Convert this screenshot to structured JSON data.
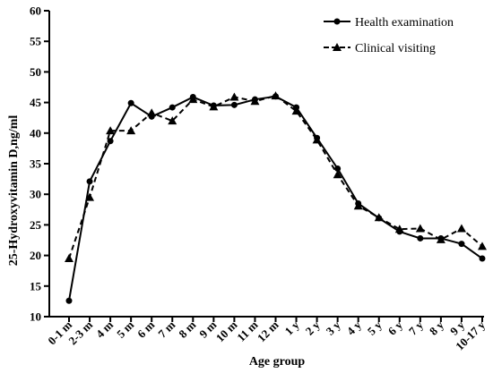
{
  "chart_data": {
    "type": "line",
    "xlabel": "Age group",
    "ylabel": "25-Hydroxyvitamin D,ng/ml",
    "ylim": [
      10,
      60
    ],
    "yticks": [
      10,
      15,
      20,
      25,
      30,
      35,
      40,
      45,
      50,
      55,
      60
    ],
    "grid": false,
    "legend_position": "top-right",
    "categories": [
      "0-1 m",
      "2-3 m",
      "4 m",
      "5 m",
      "6 m",
      "7 m",
      "8 m",
      "9 m",
      "10 m",
      "11 m",
      "12 m",
      "1 y",
      "2 y",
      "3 y",
      "4 y",
      "5 y",
      "6 y",
      "7 y",
      "8 y",
      "9 y",
      "10-17 y"
    ],
    "series": [
      {
        "name": "Health examination",
        "marker": "circle",
        "line_style": "solid",
        "values": [
          12.6,
          32.1,
          38.7,
          44.9,
          42.7,
          44.2,
          45.9,
          44.5,
          44.6,
          45.5,
          46.0,
          44.2,
          39.2,
          34.2,
          28.5,
          26.1,
          23.9,
          22.8,
          22.8,
          21.9,
          19.5
        ]
      },
      {
        "name": "Clinical visiting",
        "marker": "triangle",
        "line_style": "dashed",
        "values": [
          19.5,
          29.5,
          40.4,
          40.4,
          43.3,
          42.0,
          45.5,
          44.3,
          45.9,
          45.2,
          46.1,
          43.6,
          38.9,
          33.2,
          28.1,
          26.2,
          24.3,
          24.4,
          22.6,
          24.4,
          21.5
        ]
      }
    ]
  }
}
